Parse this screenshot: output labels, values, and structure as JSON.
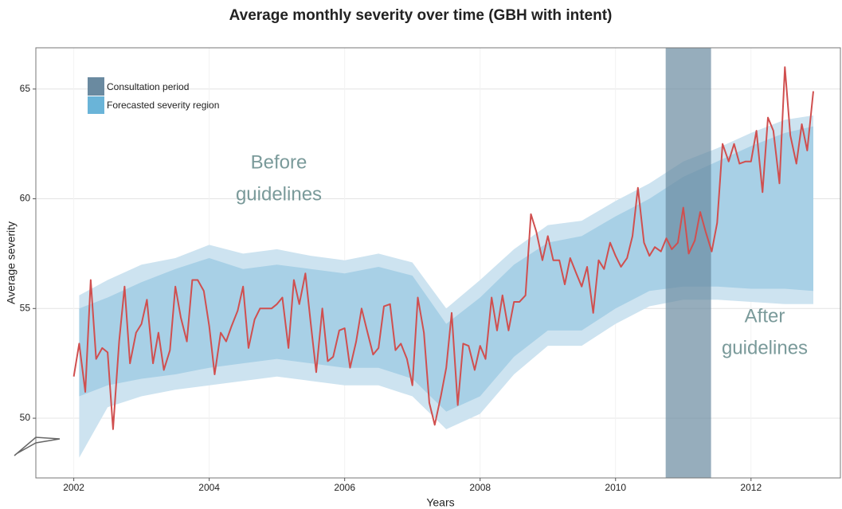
{
  "chart_data": {
    "type": "line",
    "title": "Average monthly severity over time (GBH with intent)",
    "x_label": "Years",
    "y_label": "Average severity",
    "xlim": [
      2001.44,
      2013.32
    ],
    "ylim": [
      47.28,
      66.88
    ],
    "xticks": [
      2002,
      2004,
      2006,
      2008,
      2010,
      2012
    ],
    "yticks": [
      50,
      55,
      60,
      65
    ],
    "grid": true,
    "series": [
      {
        "name": "Average severity",
        "color": "#d04f4f",
        "x": [
          2002.0,
          2002.08,
          2002.17,
          2002.25,
          2002.33,
          2002.42,
          2002.5,
          2002.58,
          2002.67,
          2002.75,
          2002.83,
          2002.92,
          2003.0,
          2003.08,
          2003.17,
          2003.25,
          2003.33,
          2003.42,
          2003.5,
          2003.58,
          2003.67,
          2003.75,
          2003.83,
          2003.92,
          2004.0,
          2004.08,
          2004.17,
          2004.25,
          2004.33,
          2004.42,
          2004.5,
          2004.58,
          2004.67,
          2004.75,
          2004.83,
          2004.92,
          2005.0,
          2005.08,
          2005.17,
          2005.25,
          2005.33,
          2005.42,
          2005.5,
          2005.58,
          2005.67,
          2005.75,
          2005.83,
          2005.92,
          2006.0,
          2006.08,
          2006.17,
          2006.25,
          2006.33,
          2006.42,
          2006.5,
          2006.58,
          2006.67,
          2006.75,
          2006.83,
          2006.92,
          2007.0,
          2007.08,
          2007.17,
          2007.25,
          2007.33,
          2007.42,
          2007.5,
          2007.58,
          2007.67,
          2007.75,
          2007.83,
          2007.92,
          2008.0,
          2008.08,
          2008.17,
          2008.25,
          2008.33,
          2008.42,
          2008.5,
          2008.58,
          2008.67,
          2008.75,
          2008.83,
          2008.92,
          2009.0,
          2009.08,
          2009.17,
          2009.25,
          2009.33,
          2009.42,
          2009.5,
          2009.58,
          2009.67,
          2009.75,
          2009.83,
          2009.92,
          2010.0,
          2010.08,
          2010.17,
          2010.25,
          2010.33,
          2010.42,
          2010.5,
          2010.58,
          2010.67,
          2010.75,
          2010.83,
          2010.92,
          2011.0,
          2011.08,
          2011.17,
          2011.25,
          2011.33,
          2011.42,
          2011.5,
          2011.58,
          2011.67,
          2011.75,
          2011.83,
          2011.92,
          2012.0,
          2012.08,
          2012.17,
          2012.25,
          2012.33,
          2012.42,
          2012.5,
          2012.58,
          2012.67,
          2012.75,
          2012.83,
          2012.92
        ],
        "values": [
          51.9,
          53.4,
          51.2,
          56.3,
          52.7,
          53.2,
          53.0,
          49.5,
          53.5,
          56.0,
          52.5,
          53.9,
          54.3,
          55.4,
          52.5,
          53.9,
          52.2,
          53.1,
          56.0,
          54.6,
          53.5,
          56.3,
          56.3,
          55.8,
          54.2,
          52.0,
          53.9,
          53.5,
          54.2,
          54.9,
          56.0,
          53.2,
          54.5,
          55.0,
          55.0,
          55.0,
          55.2,
          55.5,
          53.2,
          56.3,
          55.2,
          56.6,
          54.3,
          52.1,
          55.0,
          52.6,
          52.8,
          54.0,
          54.1,
          52.3,
          53.5,
          55.0,
          54.0,
          52.9,
          53.2,
          55.1,
          55.2,
          53.1,
          53.4,
          52.7,
          51.5,
          55.5,
          53.9,
          50.7,
          49.7,
          51.0,
          52.3,
          54.8,
          50.6,
          53.4,
          53.3,
          52.2,
          53.3,
          52.7,
          55.5,
          54.0,
          55.6,
          54.0,
          55.3,
          55.3,
          55.6,
          59.3,
          58.5,
          57.2,
          58.3,
          57.2,
          57.2,
          56.1,
          57.3,
          56.6,
          56.0,
          56.9,
          54.8,
          57.2,
          56.8,
          58.0,
          57.4,
          56.9,
          57.3,
          58.3,
          60.5,
          58.0,
          57.4,
          57.8,
          57.6,
          58.2,
          57.7,
          58.0,
          59.6,
          57.5,
          58.1,
          59.4,
          58.5,
          57.6,
          58.9,
          62.5,
          61.7,
          62.5,
          61.6,
          61.7,
          61.7,
          63.1,
          60.3,
          63.7,
          63.1,
          60.7,
          66.0,
          62.9,
          61.6,
          63.4,
          62.2,
          64.9
        ]
      }
    ],
    "forecast": {
      "name": "Forecasted severity region",
      "color": "#6ab4d8",
      "inner_color": "#a8d0e6",
      "outer_color": "#cde3f0",
      "x": [
        2002.08,
        2002.5,
        2003.0,
        2003.5,
        2004.0,
        2004.5,
        2005.0,
        2005.5,
        2006.0,
        2006.5,
        2007.0,
        2007.5,
        2008.0,
        2008.5,
        2009.0,
        2009.5,
        2010.0,
        2010.5,
        2011.0,
        2011.5,
        2012.0,
        2012.5,
        2012.92
      ],
      "inner_lower": [
        51.0,
        51.5,
        51.8,
        52.0,
        52.3,
        52.5,
        52.7,
        52.5,
        52.3,
        52.3,
        51.8,
        50.3,
        51.0,
        52.8,
        54.0,
        54.0,
        55.0,
        55.8,
        56.0,
        56.0,
        55.9,
        55.9,
        55.8
      ],
      "inner_upper": [
        55.0,
        55.5,
        56.2,
        56.8,
        57.3,
        56.8,
        57.0,
        56.8,
        56.6,
        56.9,
        56.5,
        54.3,
        55.5,
        57.0,
        58.0,
        58.3,
        59.2,
        60.0,
        61.0,
        61.7,
        62.4,
        63.0,
        63.3
      ],
      "outer_lower": [
        48.2,
        50.5,
        51.0,
        51.3,
        51.5,
        51.7,
        51.9,
        51.7,
        51.5,
        51.5,
        51.0,
        49.5,
        50.2,
        52.0,
        53.3,
        53.3,
        54.3,
        55.1,
        55.4,
        55.4,
        55.3,
        55.2,
        55.2
      ],
      "outer_upper": [
        55.6,
        56.3,
        57.0,
        57.3,
        57.9,
        57.5,
        57.7,
        57.4,
        57.2,
        57.5,
        57.1,
        55.0,
        56.3,
        57.7,
        58.8,
        59.0,
        59.9,
        60.7,
        61.7,
        62.3,
        63.0,
        63.6,
        63.8
      ]
    },
    "consultation": {
      "name": "Consultation period",
      "color": "#6a8aa0",
      "range": [
        2010.74,
        2011.41
      ]
    },
    "annotations": [
      {
        "lines": [
          "Before",
          "guidelines"
        ],
        "color": "#7a9a9a"
      },
      {
        "lines": [
          "After",
          "guidelines"
        ],
        "color": "#7a9a9a"
      }
    ]
  }
}
